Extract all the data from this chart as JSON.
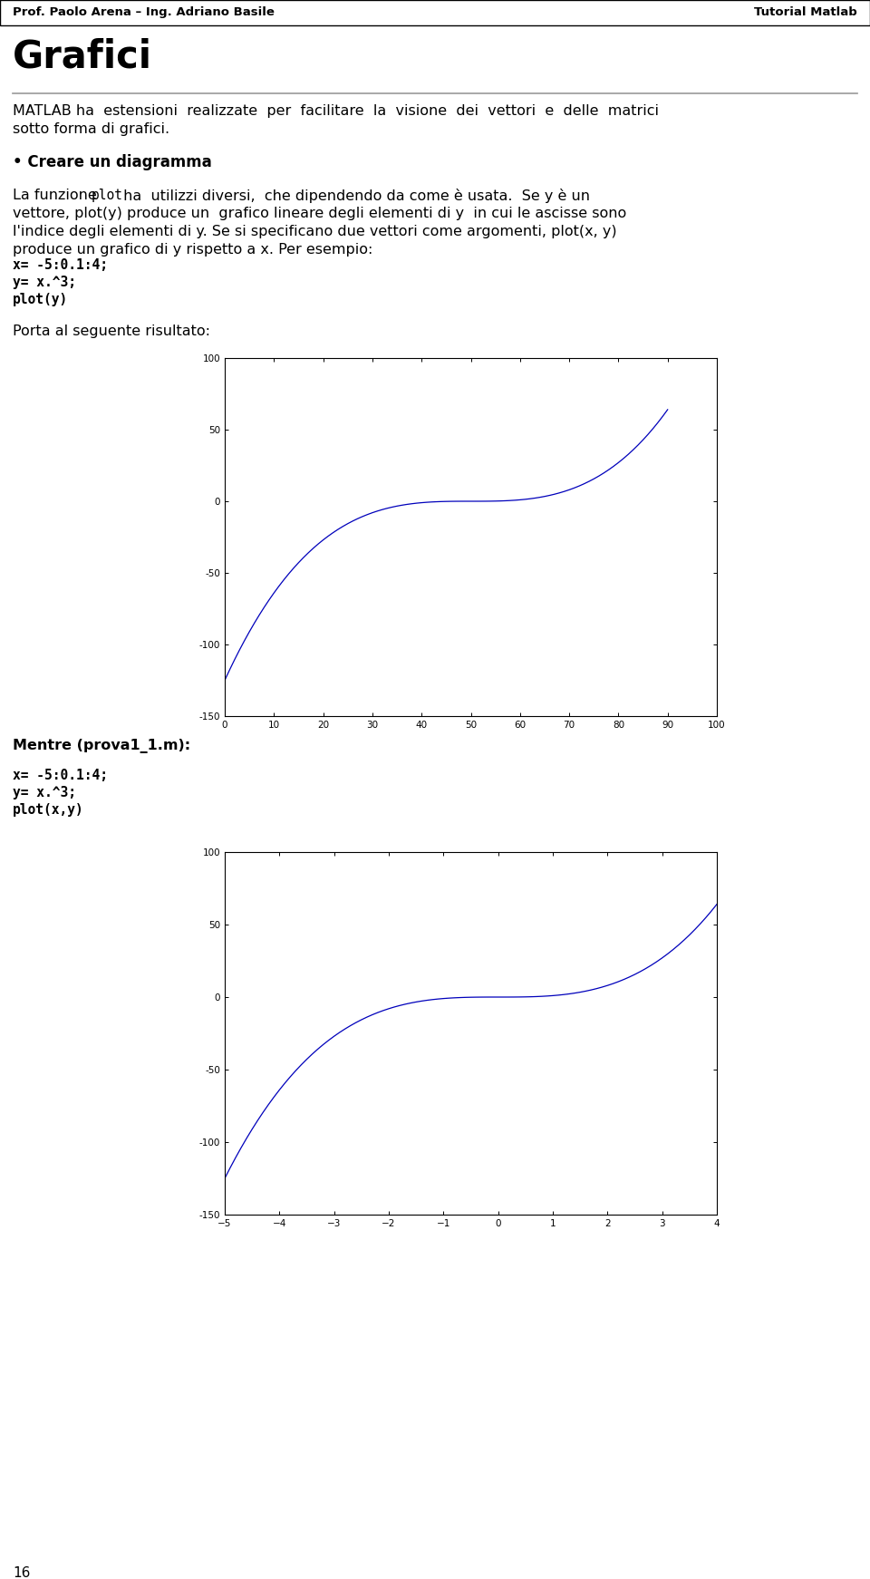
{
  "header_left": "Prof. Paolo Arena – Ing. Adriano Basile",
  "header_right": "Tutorial Matlab",
  "title": "Grafici",
  "para1_line1": "MATLAB ha  estensioni  realizzate  per  facilitare  la  visione  dei  vettori  e  delle  matrici",
  "para1_line2": "sotto forma di grafici.",
  "section1": "• Creare un diagramma",
  "para2_line1_pre": "La funzione ",
  "para2_line1_mono": "plot",
  "para2_line1_post": " ha  utilizzi diversi,  che dipendendo da come è usata.  Se y è un",
  "para2_line2": "vettore, plot(y) produce un  grafico lineare degli elementi di y  in cui le ascisse sono",
  "para2_line3": "l'indice degli elementi di y. Se si specificano due vettori come argomenti, plot(x, y)",
  "para2_line4": "produce un grafico di y rispetto a x. Per esempio:",
  "code1_line1": "x= -5:0.1:4;",
  "code1_line2": "y= x.^3;",
  "code1_line3": "plot(y)",
  "label1": "Porta al seguente risultato:",
  "label2": "Mentre (prova1_1.m):",
  "code2_line1": "x= -5:0.1:4;",
  "code2_line2": "y= x.^3;",
  "code2_line3": "plot(x,y)",
  "plot_line_color": "#0000BB",
  "background_color": "#ffffff",
  "page_number": "16",
  "plot1_xlim": [
    0,
    100
  ],
  "plot1_ylim": [
    -150,
    100
  ],
  "plot1_xticks": [
    0,
    10,
    20,
    30,
    40,
    50,
    60,
    70,
    80,
    90,
    100
  ],
  "plot1_yticks": [
    -150,
    -100,
    -50,
    0,
    50,
    100
  ],
  "plot2_xlim": [
    -5,
    4
  ],
  "plot2_ylim": [
    -150,
    100
  ],
  "plot2_xticks": [
    -5,
    -4,
    -3,
    -2,
    -1,
    0,
    1,
    2,
    3,
    4
  ],
  "plot2_yticks": [
    -150,
    -100,
    -50,
    0,
    50,
    100
  ]
}
